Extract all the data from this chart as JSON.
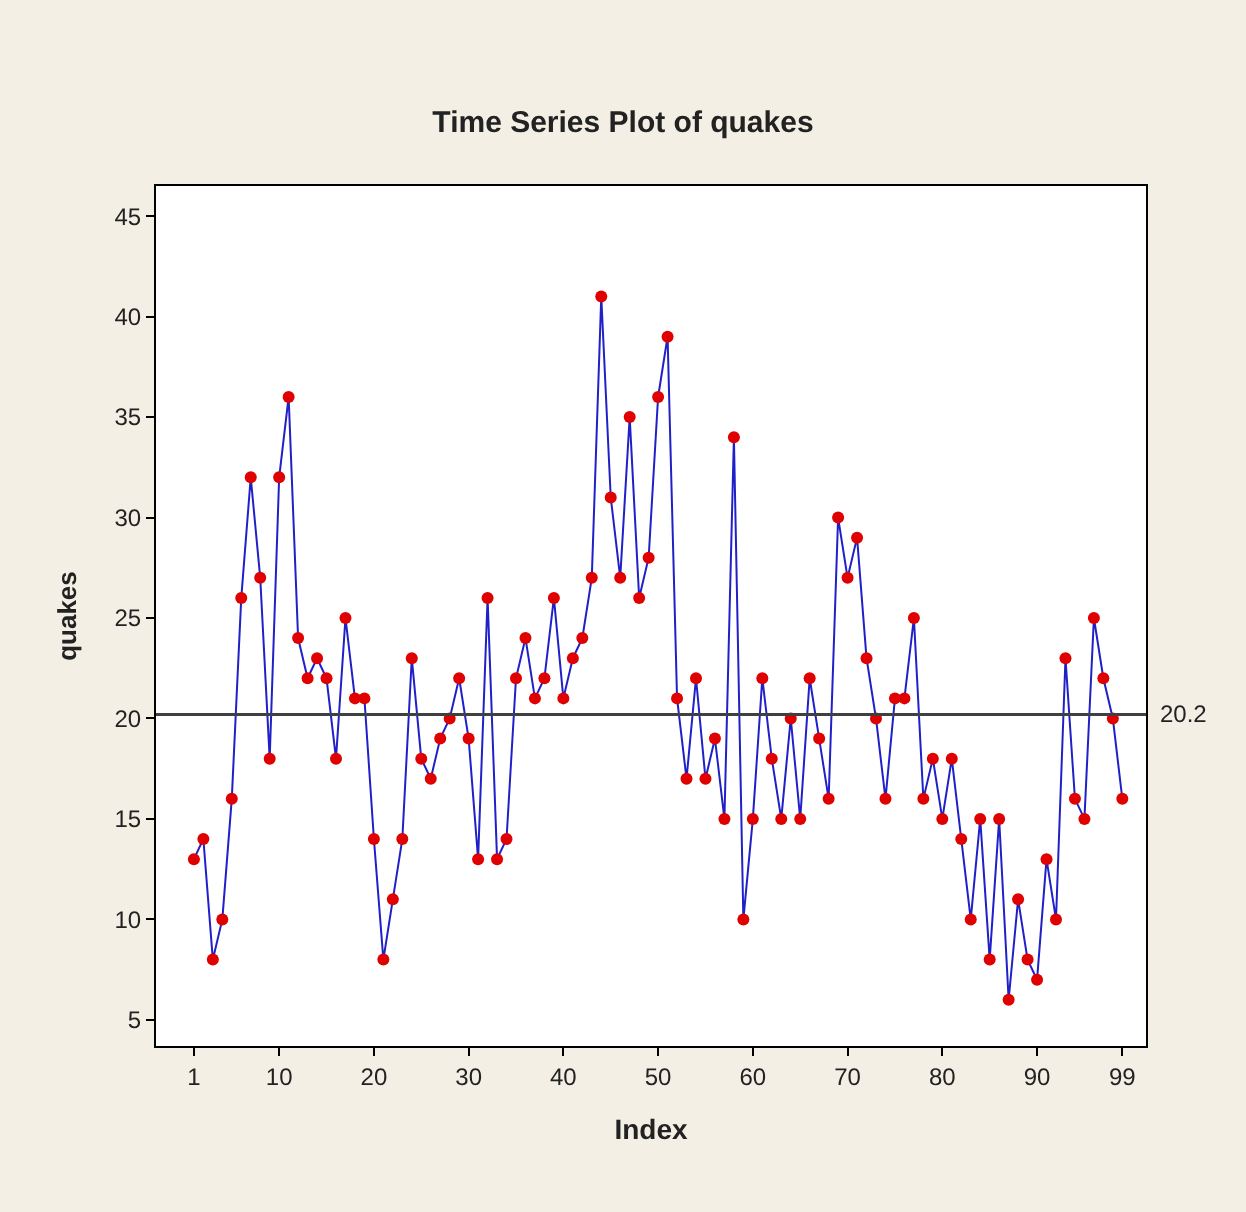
{
  "chart_data": {
    "type": "line",
    "title": "Time Series Plot of quakes",
    "xlabel": "Index",
    "ylabel": "quakes",
    "x": [
      1,
      2,
      3,
      4,
      5,
      6,
      7,
      8,
      9,
      10,
      11,
      12,
      13,
      14,
      15,
      16,
      17,
      18,
      19,
      20,
      21,
      22,
      23,
      24,
      25,
      26,
      27,
      28,
      29,
      30,
      31,
      32,
      33,
      34,
      35,
      36,
      37,
      38,
      39,
      40,
      41,
      42,
      43,
      44,
      45,
      46,
      47,
      48,
      49,
      50,
      51,
      52,
      53,
      54,
      55,
      56,
      57,
      58,
      59,
      60,
      61,
      62,
      63,
      64,
      65,
      66,
      67,
      68,
      69,
      70,
      71,
      72,
      73,
      74,
      75,
      76,
      77,
      78,
      79,
      80,
      81,
      82,
      83,
      84,
      85,
      86,
      87,
      88,
      89,
      90,
      91,
      92,
      93,
      94,
      95,
      96,
      97,
      98,
      99
    ],
    "series": [
      {
        "color": "#2020c8",
        "colors": [
          "#e00000",
          "#e00000",
          "#e00000",
          "#e00000",
          "#e00000",
          "#e00000",
          "#e00000",
          "#e00000",
          "#e00000",
          "#e00000",
          "#e00000",
          "#e00000",
          "#e00000",
          "#e00000",
          "#e00000",
          "#e00000",
          "#e00000",
          "#e00000",
          "#e00000",
          "#e00000",
          "#e00000",
          "#e00000",
          "#e00000",
          "#e00000",
          "#e00000",
          "#e00000",
          "#e00000",
          "#e00000",
          "#e00000",
          "#e00000",
          "#e00000",
          "#e00000",
          "#e00000",
          "#e00000",
          "#e00000",
          "#e00000",
          "#e00000",
          "#e00000",
          "#e00000",
          "#e00000",
          "#e00000",
          "#e00000",
          "#e00000",
          "#e00000",
          "#e00000",
          "#e00000",
          "#e00000",
          "#e00000",
          "#e00000",
          "#e00000",
          "#e00000",
          "#e00000",
          "#e00000",
          "#e00000",
          "#e00000",
          "#e00000",
          "#e00000",
          "#e00000",
          "#e00000",
          "#e00000",
          "#e00000",
          "#e00000",
          "#e00000",
          "#e00000",
          "#e00000",
          "#e00000",
          "#e00000",
          "#e00000",
          "#e00000",
          "#e00000",
          "#e00000",
          "#e00000",
          "#e00000",
          "#e00000",
          "#e00000",
          "#e00000",
          "#e00000",
          "#e00000",
          "#e00000",
          "#e00000",
          "#e00000",
          "#e00000",
          "#e00000",
          "#e00000",
          "#e00000",
          "#e00000",
          "#e00000",
          "#e00000",
          "#e00000",
          "#e00000",
          "#e00000",
          "#e00000",
          "#e00000",
          "#e00000",
          "#e00000",
          "#e00000",
          "#e00000",
          "#e00000",
          "#e00000"
        ],
        "values": [
          13,
          14,
          8,
          10,
          16,
          26,
          32,
          27,
          18,
          32,
          36,
          24,
          22,
          23,
          22,
          18,
          25,
          21,
          21,
          14,
          8,
          11,
          14,
          23,
          18,
          17,
          19,
          20,
          22,
          19,
          13,
          26,
          13,
          14,
          22,
          24,
          21,
          22,
          26,
          21,
          23,
          24,
          27,
          41,
          31,
          27,
          35,
          26,
          28,
          36,
          39,
          21,
          17,
          22,
          17,
          19,
          15,
          34,
          10,
          15,
          22,
          18,
          15,
          20,
          15,
          22,
          19,
          16,
          30,
          27,
          29,
          23,
          20,
          16,
          21,
          21,
          25,
          16,
          18,
          15,
          18,
          14,
          10,
          15,
          8,
          15,
          6,
          11,
          8,
          7,
          13,
          10,
          23,
          16,
          15,
          25,
          22,
          20,
          16
        ]
      }
    ],
    "xlim": [
      -3,
      101.5
    ],
    "xticks": [
      1,
      10,
      20,
      30,
      40,
      50,
      60,
      70,
      80,
      90,
      99
    ],
    "ylim": [
      3.7,
      46.5
    ],
    "yticks": [
      5,
      10,
      15,
      20,
      25,
      30,
      35,
      40,
      45
    ],
    "ref_lines": [
      {
        "axis": "y",
        "value": 20.2,
        "label": "20.2",
        "color": "#404040"
      }
    ],
    "marker": "circle",
    "line_style": "solid"
  }
}
